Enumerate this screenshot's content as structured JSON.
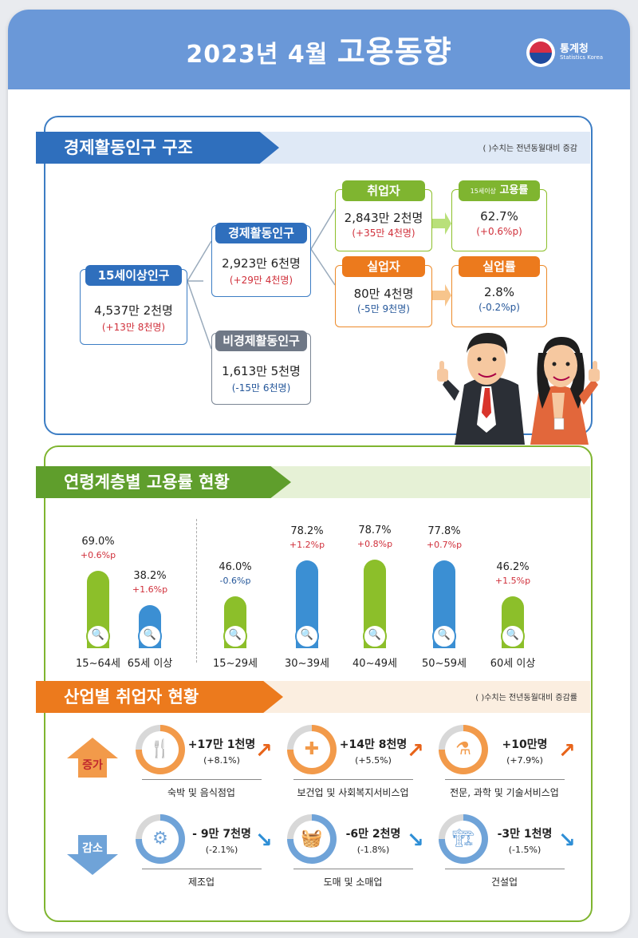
{
  "header": {
    "title_date": "2023년  4월",
    "title_main": "고용동향",
    "brand_name": "통계청",
    "brand_sub": "Statistics Korea"
  },
  "colors": {
    "header_blue": "#6a98d8",
    "section1_blue": "#3c7dc4",
    "section2_green": "#7fb530",
    "section3_orange": "#ec7a1d",
    "increase_red": "#d0303b",
    "decrease_blue": "#25579a"
  },
  "section1": {
    "title": "경제활동인구 구조",
    "note": "( )수치는 전년동월대비 증감",
    "pop15": {
      "label": "15세이상인구",
      "value": "4,537만 2천명",
      "change": "(+13만 8천명)"
    },
    "active": {
      "label": "경제활동인구",
      "value": "2,923만 6천명",
      "change": "(+29만 4천명)"
    },
    "inactive": {
      "label": "비경제활동인구",
      "value": "1,613만 5천명",
      "change": "(-15만 6천명)"
    },
    "employed": {
      "label": "취업자",
      "value": "2,843만 2천명",
      "change": "(+35만 4천명)"
    },
    "emp_rate": {
      "label_small": "15세이상",
      "label": "고용률",
      "value": "62.7%",
      "change": "(+0.6%p)"
    },
    "unemployed": {
      "label": "실업자",
      "value": "80만 4천명",
      "change": "(-5만 9천명)"
    },
    "unemp_rate": {
      "label": "실업률",
      "value": "2.8%",
      "change": "(-0.2%p)"
    }
  },
  "chart_data": {
    "type": "bar",
    "title": "연령계층별 고용률 현황",
    "categories": [
      "15~64세",
      "65세 이상",
      "15~29세",
      "30~39세",
      "40~49세",
      "50~59세",
      "60세 이상"
    ],
    "values": [
      69.0,
      38.2,
      46.0,
      78.2,
      78.7,
      77.8,
      46.2
    ],
    "value_labels": [
      "69.0%",
      "38.2%",
      "46.0%",
      "78.2%",
      "78.7%",
      "77.8%",
      "46.2%"
    ],
    "changes": [
      "+0.6%p",
      "+1.6%p",
      "-0.6%p",
      "+1.2%p",
      "+0.8%p",
      "+0.7%p",
      "+1.5%p"
    ],
    "bar_colors": [
      "#8cbf2a",
      "#3b8fd3",
      "#8cbf2a",
      "#3b8fd3",
      "#8cbf2a",
      "#3b8fd3",
      "#8cbf2a"
    ],
    "unit": "%",
    "grid": false,
    "legend": "none"
  },
  "section3": {
    "title": "산업별 취업자 현황",
    "note": "( )수치는 전년동월대비 증감률",
    "increase_label": "증가",
    "decrease_label": "감소",
    "increase": [
      {
        "icon": "dining-icon",
        "glyph": "🍴",
        "value": "+17만 1천명",
        "change": "(+8.1%)",
        "name": "숙박 및 음식점업",
        "ring_share": 0.75
      },
      {
        "icon": "first-aid-kit-icon",
        "glyph": "✚",
        "value": "+14만 8천명",
        "change": "(+5.5%)",
        "name": "보건업 및 사회복지서비스업",
        "ring_share": 0.75
      },
      {
        "icon": "lab-flask-icon",
        "glyph": "⚗",
        "value": "+10만명",
        "change": "(+7.9%)",
        "name": "전문, 과학 및 기술서비스업",
        "ring_share": 0.75
      }
    ],
    "decrease": [
      {
        "icon": "gears-icon",
        "glyph": "⚙",
        "value": "- 9만 7천명",
        "change": "(-2.1%)",
        "name": "제조업",
        "ring_share": 0.75
      },
      {
        "icon": "shopping-basket-icon",
        "glyph": "🧺",
        "value": "-6만 2천명",
        "change": "(-1.8%)",
        "name": "도매 및 소매업",
        "ring_share": 0.75
      },
      {
        "icon": "excavator-icon",
        "glyph": "🏗",
        "value": "-3만 1천명",
        "change": "(-1.5%)",
        "name": "건설업",
        "ring_share": 0.75
      }
    ]
  }
}
